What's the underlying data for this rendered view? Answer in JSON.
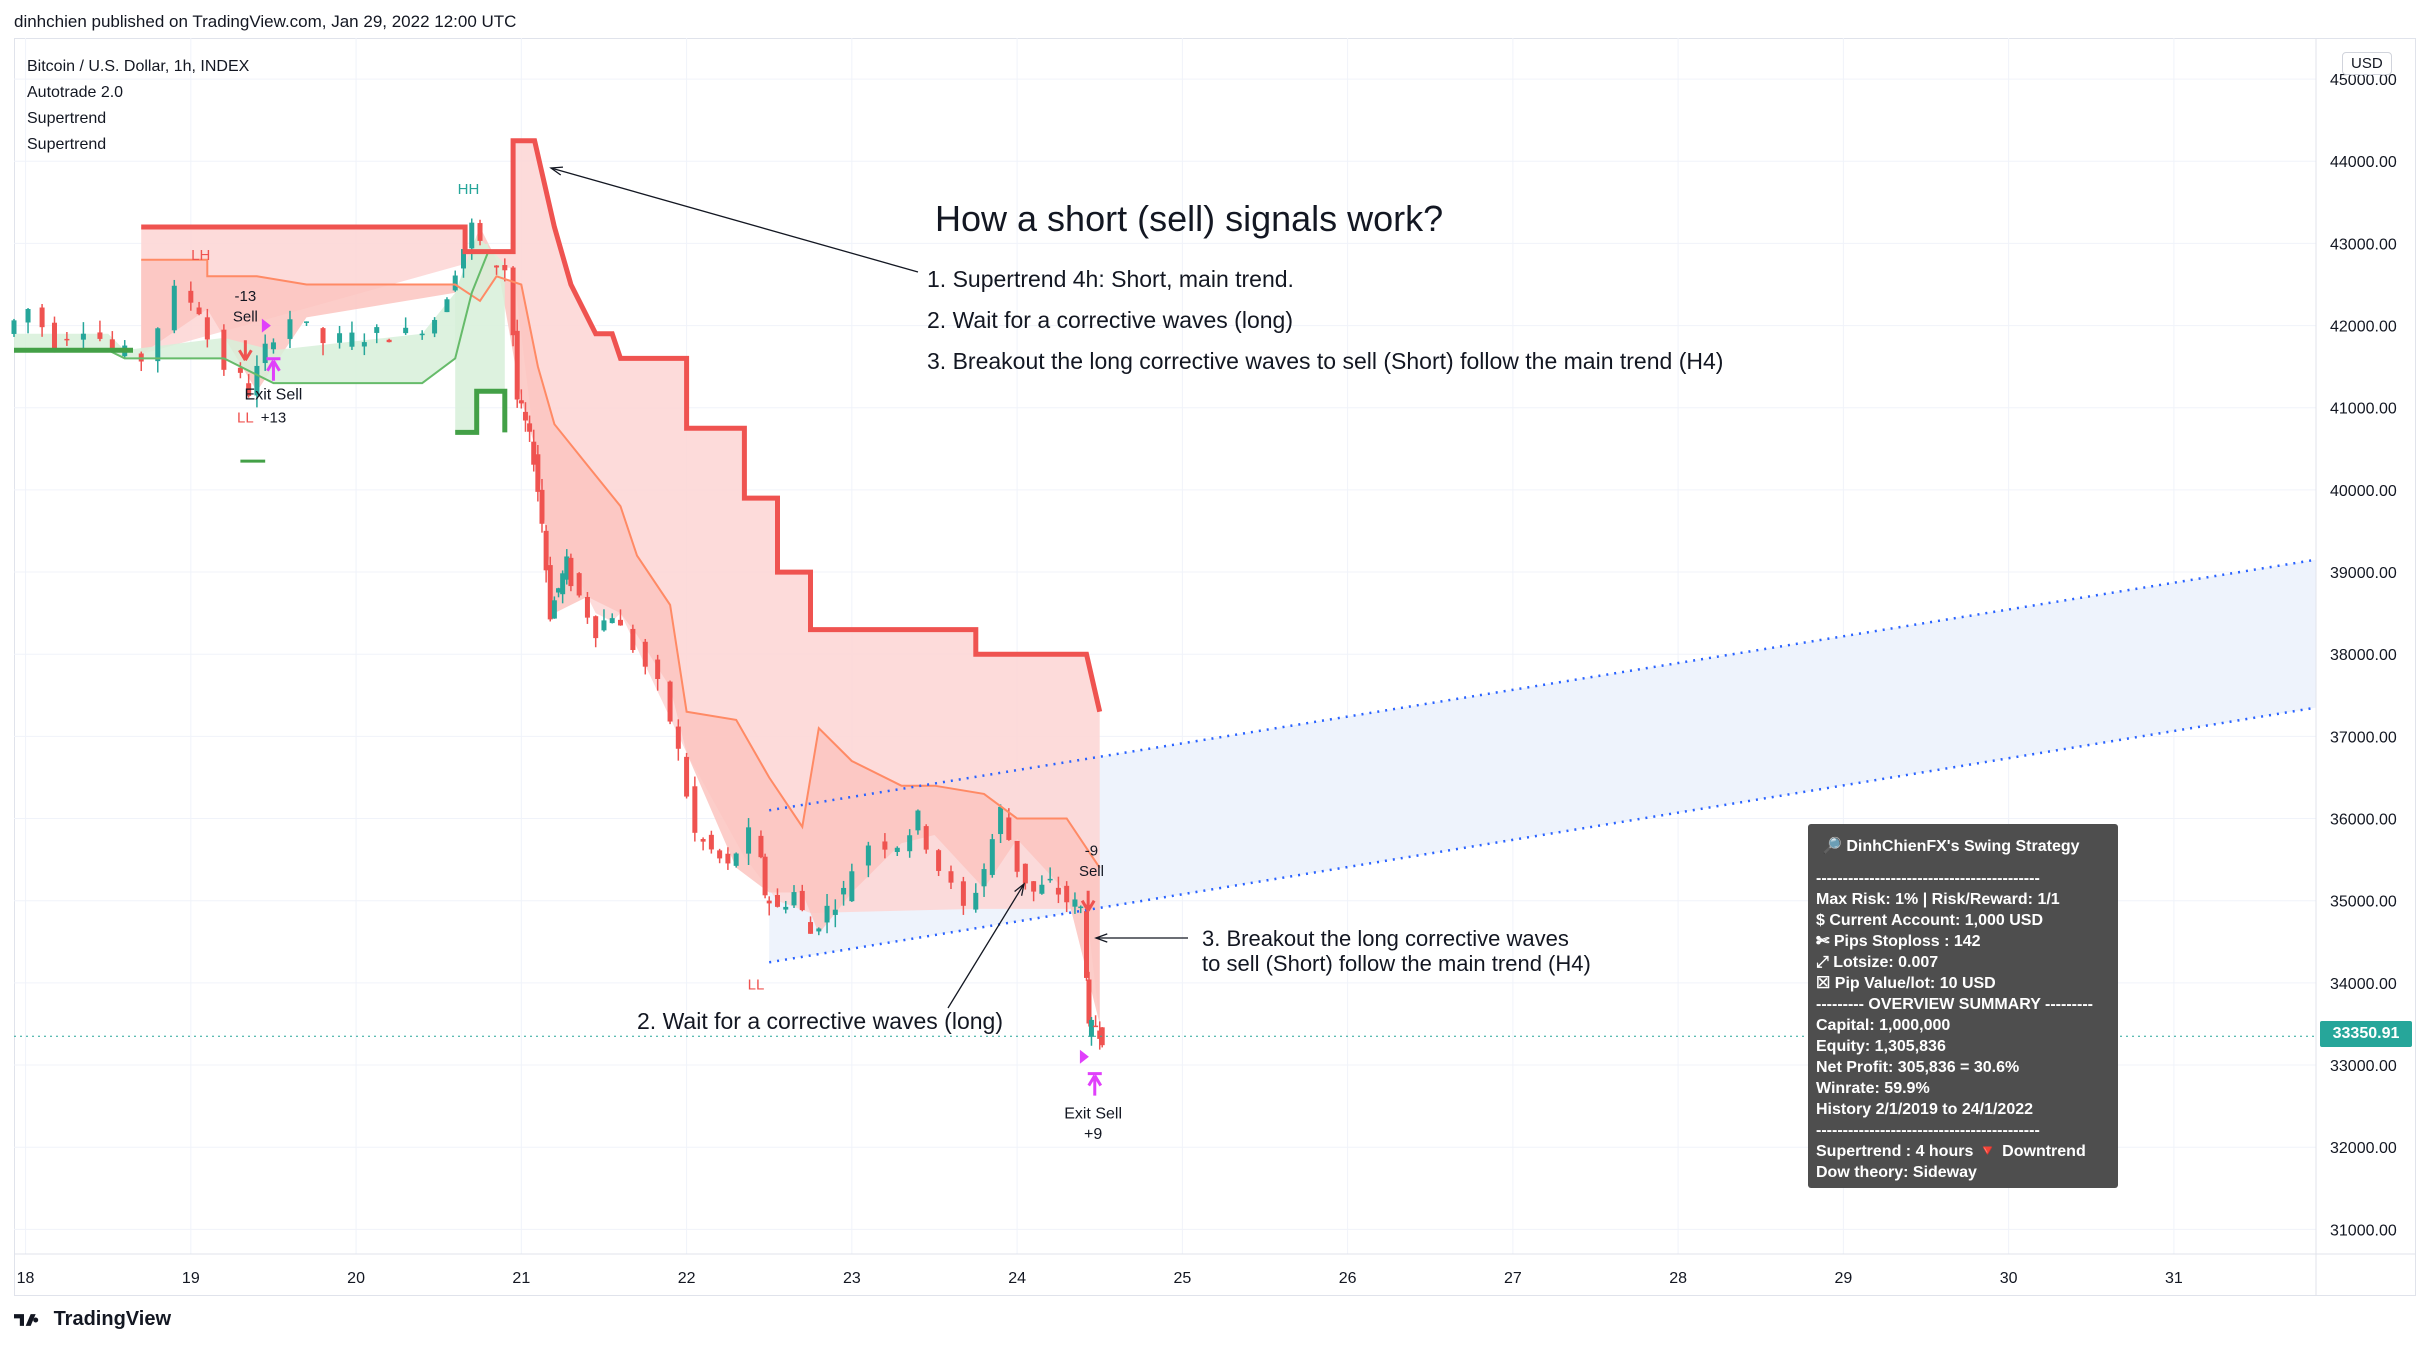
{
  "header": {
    "publisher": "dinhchien published on TradingView.com, Jan 29, 2022 12:00 UTC"
  },
  "legend": {
    "symbol": "Bitcoin / U.S. Dollar, 1h, INDEX",
    "indicators": [
      "Autotrade 2.0",
      "Supertrend",
      "Supertrend"
    ]
  },
  "currency": "USD",
  "last_price": "33350.91",
  "colors": {
    "supertrend_down": "#ef5350",
    "supertrend_up": "#43a047",
    "down_fill": "#fdd5d3",
    "up_fill": "#d7f0d9",
    "candle_up": "#26a69a",
    "candle_down": "#ef5350",
    "channel": "#2962ff",
    "channel_fill": "#eef3fc",
    "signal": "#e040fb",
    "panel_bg": "#4e4e4e"
  },
  "chart_data": {
    "type": "line",
    "title": "Bitcoin / U.S. Dollar, 1h, INDEX",
    "ylim": [
      30700,
      45500
    ],
    "x_ticks": [
      "18",
      "19",
      "20",
      "21",
      "22",
      "23",
      "24",
      "25",
      "26",
      "27",
      "28",
      "29",
      "30",
      "31"
    ],
    "y_ticks": [
      "45000.00",
      "44000.00",
      "43000.00",
      "42000.00",
      "41000.00",
      "40000.00",
      "39000.00",
      "38000.00",
      "37000.00",
      "36000.00",
      "35000.00",
      "34000.00",
      "33000.00",
      "32000.00",
      "31000.00"
    ],
    "x_range_days": [
      17.93,
      31.86
    ],
    "series": [
      {
        "name": "Supertrend",
        "role": "h4_down",
        "points": [
          [
            18.7,
            43200
          ],
          [
            20.66,
            43200
          ],
          [
            20.66,
            42900
          ],
          [
            20.95,
            42900
          ],
          [
            20.95,
            44250
          ],
          [
            21.08,
            44250
          ],
          [
            21.12,
            43900
          ],
          [
            21.2,
            43200
          ],
          [
            21.3,
            42500
          ],
          [
            21.45,
            41900
          ],
          [
            21.55,
            41900
          ],
          [
            21.6,
            41600
          ],
          [
            22.0,
            41600
          ],
          [
            22.0,
            40750
          ],
          [
            22.35,
            40750
          ],
          [
            22.35,
            39900
          ],
          [
            22.55,
            39900
          ],
          [
            22.55,
            39000
          ],
          [
            22.75,
            39000
          ],
          [
            22.75,
            38300
          ],
          [
            23.75,
            38300
          ],
          [
            23.75,
            38000
          ],
          [
            24.42,
            38000
          ],
          [
            24.5,
            37300
          ]
        ]
      },
      {
        "name": "Supertrend",
        "role": "h4_up",
        "points": [
          [
            20.6,
            40700
          ],
          [
            20.73,
            40700
          ],
          [
            20.73,
            41200
          ],
          [
            20.9,
            41200
          ],
          [
            20.9,
            40700
          ]
        ]
      },
      {
        "name": "Supertrend",
        "role": "h1_down",
        "points": [
          [
            18.7,
            42800
          ],
          [
            19.1,
            42800
          ],
          [
            19.1,
            42600
          ],
          [
            19.4,
            42600
          ],
          [
            19.7,
            42500
          ],
          [
            20.6,
            42500
          ],
          [
            20.75,
            42300
          ],
          [
            20.85,
            42600
          ],
          [
            21.0,
            42500
          ],
          [
            21.1,
            41500
          ],
          [
            21.2,
            40800
          ],
          [
            21.4,
            40300
          ],
          [
            21.6,
            39800
          ],
          [
            21.7,
            39200
          ],
          [
            21.9,
            38600
          ],
          [
            22.0,
            37300
          ],
          [
            22.3,
            37200
          ],
          [
            22.5,
            36500
          ],
          [
            22.7,
            35900
          ],
          [
            22.8,
            37100
          ],
          [
            23.0,
            36700
          ],
          [
            23.3,
            36400
          ],
          [
            23.5,
            36400
          ],
          [
            23.8,
            36300
          ],
          [
            24.0,
            36000
          ],
          [
            24.3,
            36000
          ],
          [
            24.5,
            35400
          ]
        ]
      },
      {
        "name": "Supertrend",
        "role": "h1_up",
        "points": [
          [
            17.93,
            41700
          ],
          [
            18.5,
            41700
          ],
          [
            18.6,
            41600
          ],
          [
            19.2,
            41600
          ],
          [
            19.5,
            41300
          ],
          [
            20.4,
            41300
          ],
          [
            20.6,
            41600
          ],
          [
            20.7,
            42400
          ],
          [
            20.8,
            42900
          ]
        ]
      },
      {
        "name": "Price",
        "role": "price",
        "points": [
          [
            17.93,
            41900
          ],
          [
            18.1,
            42200
          ],
          [
            18.25,
            41800
          ],
          [
            18.45,
            42000
          ],
          [
            18.6,
            41700
          ],
          [
            18.8,
            41600
          ],
          [
            19.0,
            42400
          ],
          [
            19.1,
            42200
          ],
          [
            19.3,
            41500
          ],
          [
            19.4,
            41200
          ],
          [
            19.5,
            41700
          ],
          [
            19.7,
            42100
          ],
          [
            19.9,
            41800
          ],
          [
            20.2,
            41900
          ],
          [
            20.4,
            41900
          ],
          [
            20.55,
            42100
          ],
          [
            20.65,
            42700
          ],
          [
            20.75,
            43200
          ],
          [
            20.85,
            42800
          ],
          [
            20.95,
            42700
          ],
          [
            21.0,
            41100
          ],
          [
            21.05,
            40800
          ],
          [
            21.1,
            40400
          ],
          [
            21.15,
            39600
          ],
          [
            21.2,
            38500
          ],
          [
            21.25,
            38800
          ],
          [
            21.3,
            39100
          ],
          [
            21.4,
            38700
          ],
          [
            21.5,
            38300
          ],
          [
            21.6,
            38500
          ],
          [
            21.75,
            38100
          ],
          [
            21.9,
            37600
          ],
          [
            22.0,
            36800
          ],
          [
            22.1,
            35800
          ],
          [
            22.2,
            35600
          ],
          [
            22.3,
            35400
          ],
          [
            22.45,
            35800
          ],
          [
            22.5,
            35100
          ],
          [
            22.6,
            34900
          ],
          [
            22.7,
            35100
          ],
          [
            22.8,
            34600
          ],
          [
            22.9,
            34900
          ],
          [
            23.0,
            35100
          ],
          [
            23.2,
            35700
          ],
          [
            23.35,
            35700
          ],
          [
            23.45,
            36000
          ],
          [
            23.6,
            35400
          ],
          [
            23.75,
            34900
          ],
          [
            23.85,
            35400
          ],
          [
            23.95,
            36100
          ],
          [
            24.05,
            35400
          ],
          [
            24.15,
            35100
          ],
          [
            24.25,
            35200
          ],
          [
            24.35,
            35000
          ],
          [
            24.42,
            34900
          ],
          [
            24.45,
            33400
          ],
          [
            24.5,
            33500
          ],
          [
            24.53,
            33350
          ]
        ]
      },
      {
        "name": "Channel",
        "role": "channel_upper",
        "points": [
          [
            22.5,
            36100
          ],
          [
            31.86,
            39150
          ]
        ]
      },
      {
        "name": "Channel",
        "role": "channel_lower",
        "points": [
          [
            22.5,
            34250
          ],
          [
            31.86,
            37350
          ]
        ]
      }
    ]
  },
  "annotations": {
    "title": "How a short (sell) signals work?",
    "rules": [
      "1. Supertrend 4h: Short, main trend.",
      "2. Wait for a corrective waves (long)",
      "3. Breakout the long corrective waves to sell (Short) follow the main trend (H4)"
    ],
    "callout_wait": "2. Wait for a corrective waves (long)",
    "callout_break_1": "3. Breakout the long corrective waves",
    "callout_break_2": "to sell (Short) follow the main trend (H4)",
    "labels": {
      "lh": "LH",
      "hh": "HH",
      "ll1": "LL",
      "ll2": "LL",
      "sell1_num": "-13",
      "sell1": "Sell",
      "exit1": "Exit Sell",
      "exit1_num": "+13",
      "sell2_num": "-9",
      "sell2": "Sell",
      "exit2": "Exit Sell",
      "exit2_num": "+9"
    }
  },
  "panel": {
    "title": "🔎 DinhChienFX's Swing Strategy",
    "rows": [
      "------------------------------------------",
      "Max Risk: 1% | Risk/Reward: 1/1",
      " $ Current Account: 1,000 USD",
      " ✄ Pips Stoploss : 142",
      " ⤢ Lotsize: 0.007",
      " ☒ Pip Value/lot: 10 USD",
      " --------- OVERVIEW SUMMARY ---------",
      " Capital: 1,000,000",
      " Equity: 1,305,836",
      " Net Profit: 305,836 = 30.6%",
      " Winrate: 59.9%",
      "History 2/1/2019 to 24/1/2022",
      "------------------------------------------",
      " Supertrend : 4 hours 🔻 Downtrend",
      " Dow theory: Sideway"
    ]
  },
  "footer": {
    "brand": "TradingView"
  }
}
